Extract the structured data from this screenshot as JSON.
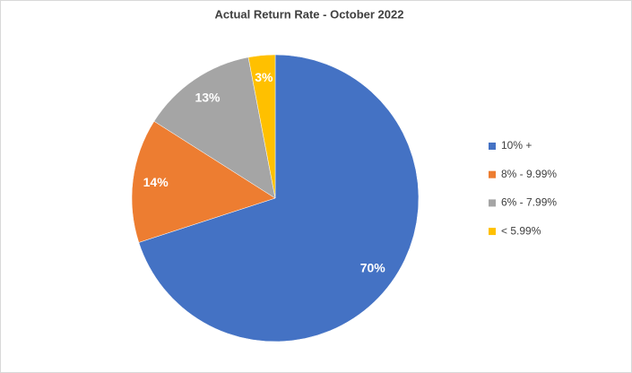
{
  "chart_data": {
    "type": "pie",
    "title": "Actual Return Rate - October 2022",
    "categories": [
      "10% +",
      "8% - 9.99%",
      "6% - 7.99%",
      "< 5.99%"
    ],
    "values": [
      70,
      14,
      13,
      3
    ],
    "value_labels": [
      "70%",
      "14%",
      "13%",
      "3%"
    ],
    "colors": [
      "#4472c4",
      "#ed7d31",
      "#a5a5a5",
      "#ffc000"
    ],
    "legend": "right"
  }
}
